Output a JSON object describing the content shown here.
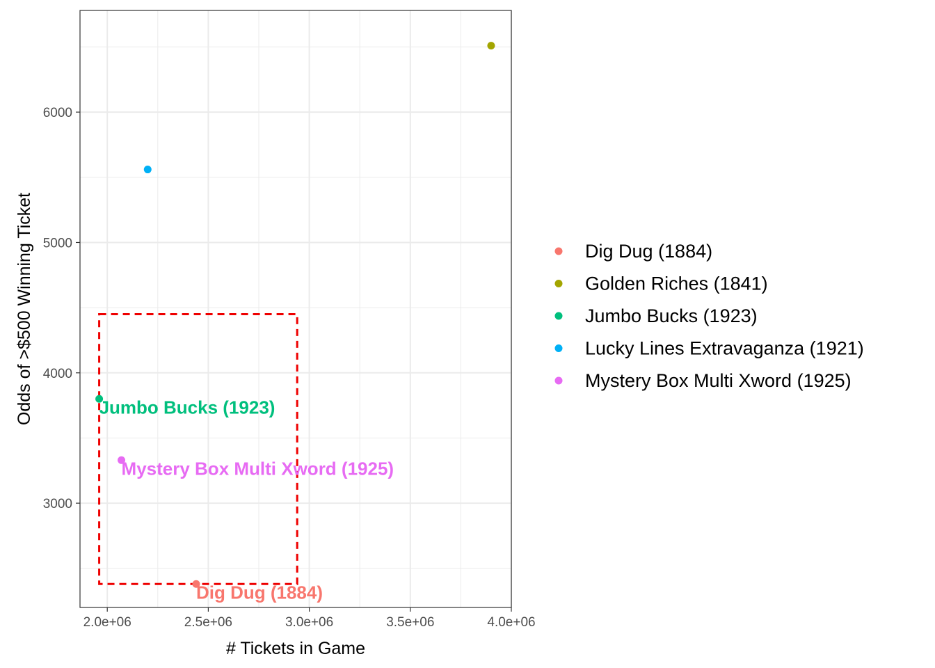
{
  "chart_data": {
    "type": "scatter",
    "xlabel": "# Tickets in Game",
    "ylabel": "Odds of >$500 Winning Ticket",
    "xlim": [
      1860000,
      4000000
    ],
    "ylim": [
      2200000,
      0
    ],
    "x_ticks": [
      {
        "value": 2000000,
        "label": "2.0e+06"
      },
      {
        "value": 2500000,
        "label": "2.5e+06"
      },
      {
        "value": 3000000,
        "label": "3.0e+06"
      },
      {
        "value": 3500000,
        "label": "3.5e+06"
      },
      {
        "value": 4000000,
        "label": "4.0e+06"
      }
    ],
    "y_ticks": [
      {
        "value": 3000,
        "label": "3000"
      },
      {
        "value": 4000,
        "label": "4000"
      },
      {
        "value": 5000,
        "label": "5000"
      },
      {
        "value": 6000,
        "label": "6000"
      }
    ],
    "y_range": [
      2200,
      6780
    ],
    "grid": true,
    "legend_position": "right",
    "series": [
      {
        "name": "Dig Dug (1884)",
        "color": "#F8766D",
        "x": 2440000,
        "y": 2380,
        "label": "Dig Dug (1884)"
      },
      {
        "name": "Golden Riches (1841)",
        "color": "#A3A500",
        "x": 3900000,
        "y": 6510,
        "label": ""
      },
      {
        "name": "Jumbo Bucks (1923)",
        "color": "#00BF7D",
        "x": 1960000,
        "y": 3800,
        "label": "Jumbo Bucks (1923)"
      },
      {
        "name": "Lucky Lines Extravaganza (1921)",
        "color": "#00B0F6",
        "x": 2200000,
        "y": 5560,
        "label": ""
      },
      {
        "name": "Mystery Box Multi Xword (1925)",
        "color": "#E76BF3",
        "x": 2070000,
        "y": 3330,
        "label": "Mystery Box Multi Xword (1925)"
      }
    ],
    "highlight_box": {
      "x_min": 1960000,
      "x_max": 2940000,
      "y_min": 2380,
      "y_max": 4450,
      "color": "#EE0000",
      "style": "dashed"
    }
  }
}
